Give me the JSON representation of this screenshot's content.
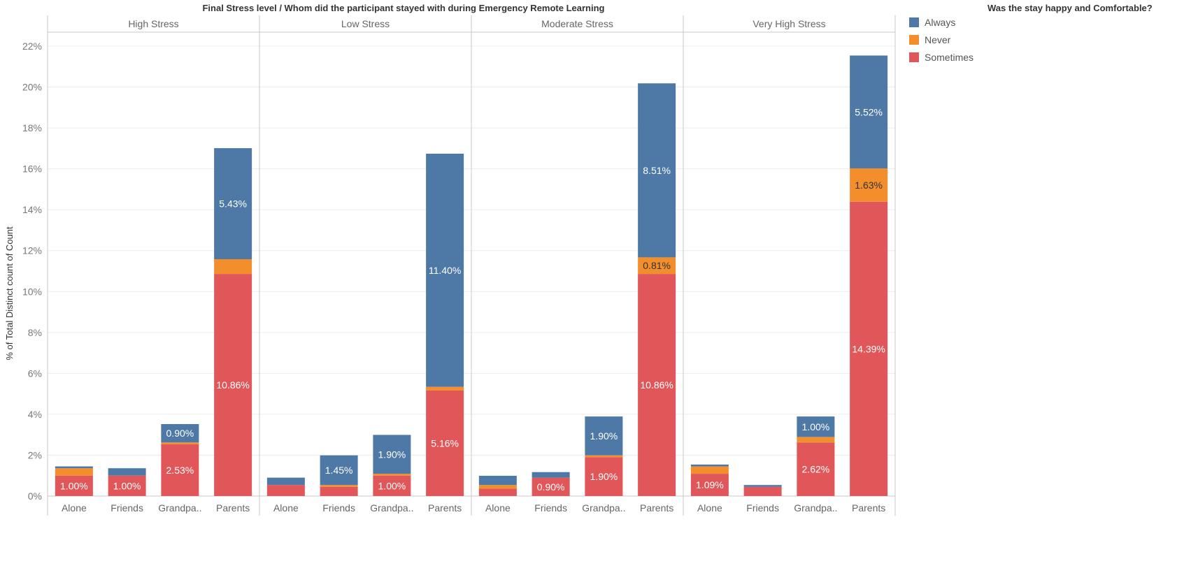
{
  "chart_data": {
    "type": "bar",
    "stacked": true,
    "title": "Final Stress level  /  Whom did the participant stayed with during Emergency Remote Learning",
    "ylabel": "% of Total Distinct count of Count",
    "ylim": [
      0,
      22
    ],
    "yticks": [
      "0%",
      "2%",
      "4%",
      "6%",
      "8%",
      "10%",
      "12%",
      "14%",
      "16%",
      "18%",
      "20%",
      "22%"
    ],
    "grid": true,
    "legend": {
      "title": "Was the stay happy and Comfortable?",
      "position": "right",
      "items": [
        {
          "name": "Always",
          "color": "#4e79a7"
        },
        {
          "name": "Never",
          "color": "#f28e2b"
        },
        {
          "name": "Sometimes",
          "color": "#e15759"
        }
      ]
    },
    "stack_order": [
      "Sometimes",
      "Never",
      "Always"
    ],
    "panels": [
      {
        "title": "High Stress",
        "categories": [
          "Alone",
          "Friends",
          "Grandpa..",
          "Parents"
        ],
        "bars": [
          {
            "Sometimes": 1.0,
            "Never": 0.36,
            "Always": 0.09,
            "labels": {
              "Sometimes": "1.00%"
            }
          },
          {
            "Sometimes": 1.0,
            "Never": 0.0,
            "Always": 0.36,
            "labels": {
              "Sometimes": "1.00%"
            }
          },
          {
            "Sometimes": 2.53,
            "Never": 0.09,
            "Always": 0.9,
            "labels": {
              "Sometimes": "2.53%",
              "Always": "0.90%"
            }
          },
          {
            "Sometimes": 10.86,
            "Never": 0.72,
            "Always": 5.43,
            "labels": {
              "Sometimes": "10.86%",
              "Always": "5.43%"
            }
          }
        ]
      },
      {
        "title": "Low Stress",
        "categories": [
          "Alone",
          "Friends",
          "Grandpa..",
          "Parents"
        ],
        "bars": [
          {
            "Sometimes": 0.54,
            "Never": 0.0,
            "Always": 0.36,
            "labels": {}
          },
          {
            "Sometimes": 0.45,
            "Never": 0.09,
            "Always": 1.45,
            "labels": {
              "Always": "1.45%"
            }
          },
          {
            "Sometimes": 1.0,
            "Never": 0.09,
            "Always": 1.9,
            "labels": {
              "Sometimes": "1.00%",
              "Always": "1.90%"
            }
          },
          {
            "Sometimes": 5.16,
            "Never": 0.18,
            "Always": 11.4,
            "labels": {
              "Sometimes": "5.16%",
              "Always": "11.40%"
            }
          }
        ]
      },
      {
        "title": "Moderate Stress",
        "categories": [
          "Alone",
          "Friends",
          "Grandpa..",
          "Parents"
        ],
        "bars": [
          {
            "Sometimes": 0.36,
            "Never": 0.18,
            "Always": 0.45,
            "labels": {}
          },
          {
            "Sometimes": 0.9,
            "Never": 0.0,
            "Always": 0.27,
            "labels": {
              "Sometimes": "0.90%"
            }
          },
          {
            "Sometimes": 1.9,
            "Never": 0.09,
            "Always": 1.9,
            "labels": {
              "Sometimes": "1.90%",
              "Always": "1.90%"
            }
          },
          {
            "Sometimes": 10.86,
            "Never": 0.81,
            "Always": 8.51,
            "labels": {
              "Sometimes": "10.86%",
              "Never": "0.81%",
              "Always": "8.51%"
            }
          }
        ]
      },
      {
        "title": "Very High Stress",
        "categories": [
          "Alone",
          "Friends",
          "Grandpa..",
          "Parents"
        ],
        "bars": [
          {
            "Sometimes": 1.09,
            "Never": 0.36,
            "Always": 0.09,
            "labels": {
              "Sometimes": "1.09%"
            }
          },
          {
            "Sometimes": 0.45,
            "Never": 0.0,
            "Always": 0.09,
            "labels": {}
          },
          {
            "Sometimes": 2.62,
            "Never": 0.27,
            "Always": 1.0,
            "labels": {
              "Sometimes": "2.62%",
              "Always": "1.00%"
            }
          },
          {
            "Sometimes": 14.39,
            "Never": 1.63,
            "Always": 5.52,
            "labels": {
              "Sometimes": "14.39%",
              "Never": "1.63%",
              "Always": "5.52%"
            }
          }
        ]
      }
    ]
  }
}
